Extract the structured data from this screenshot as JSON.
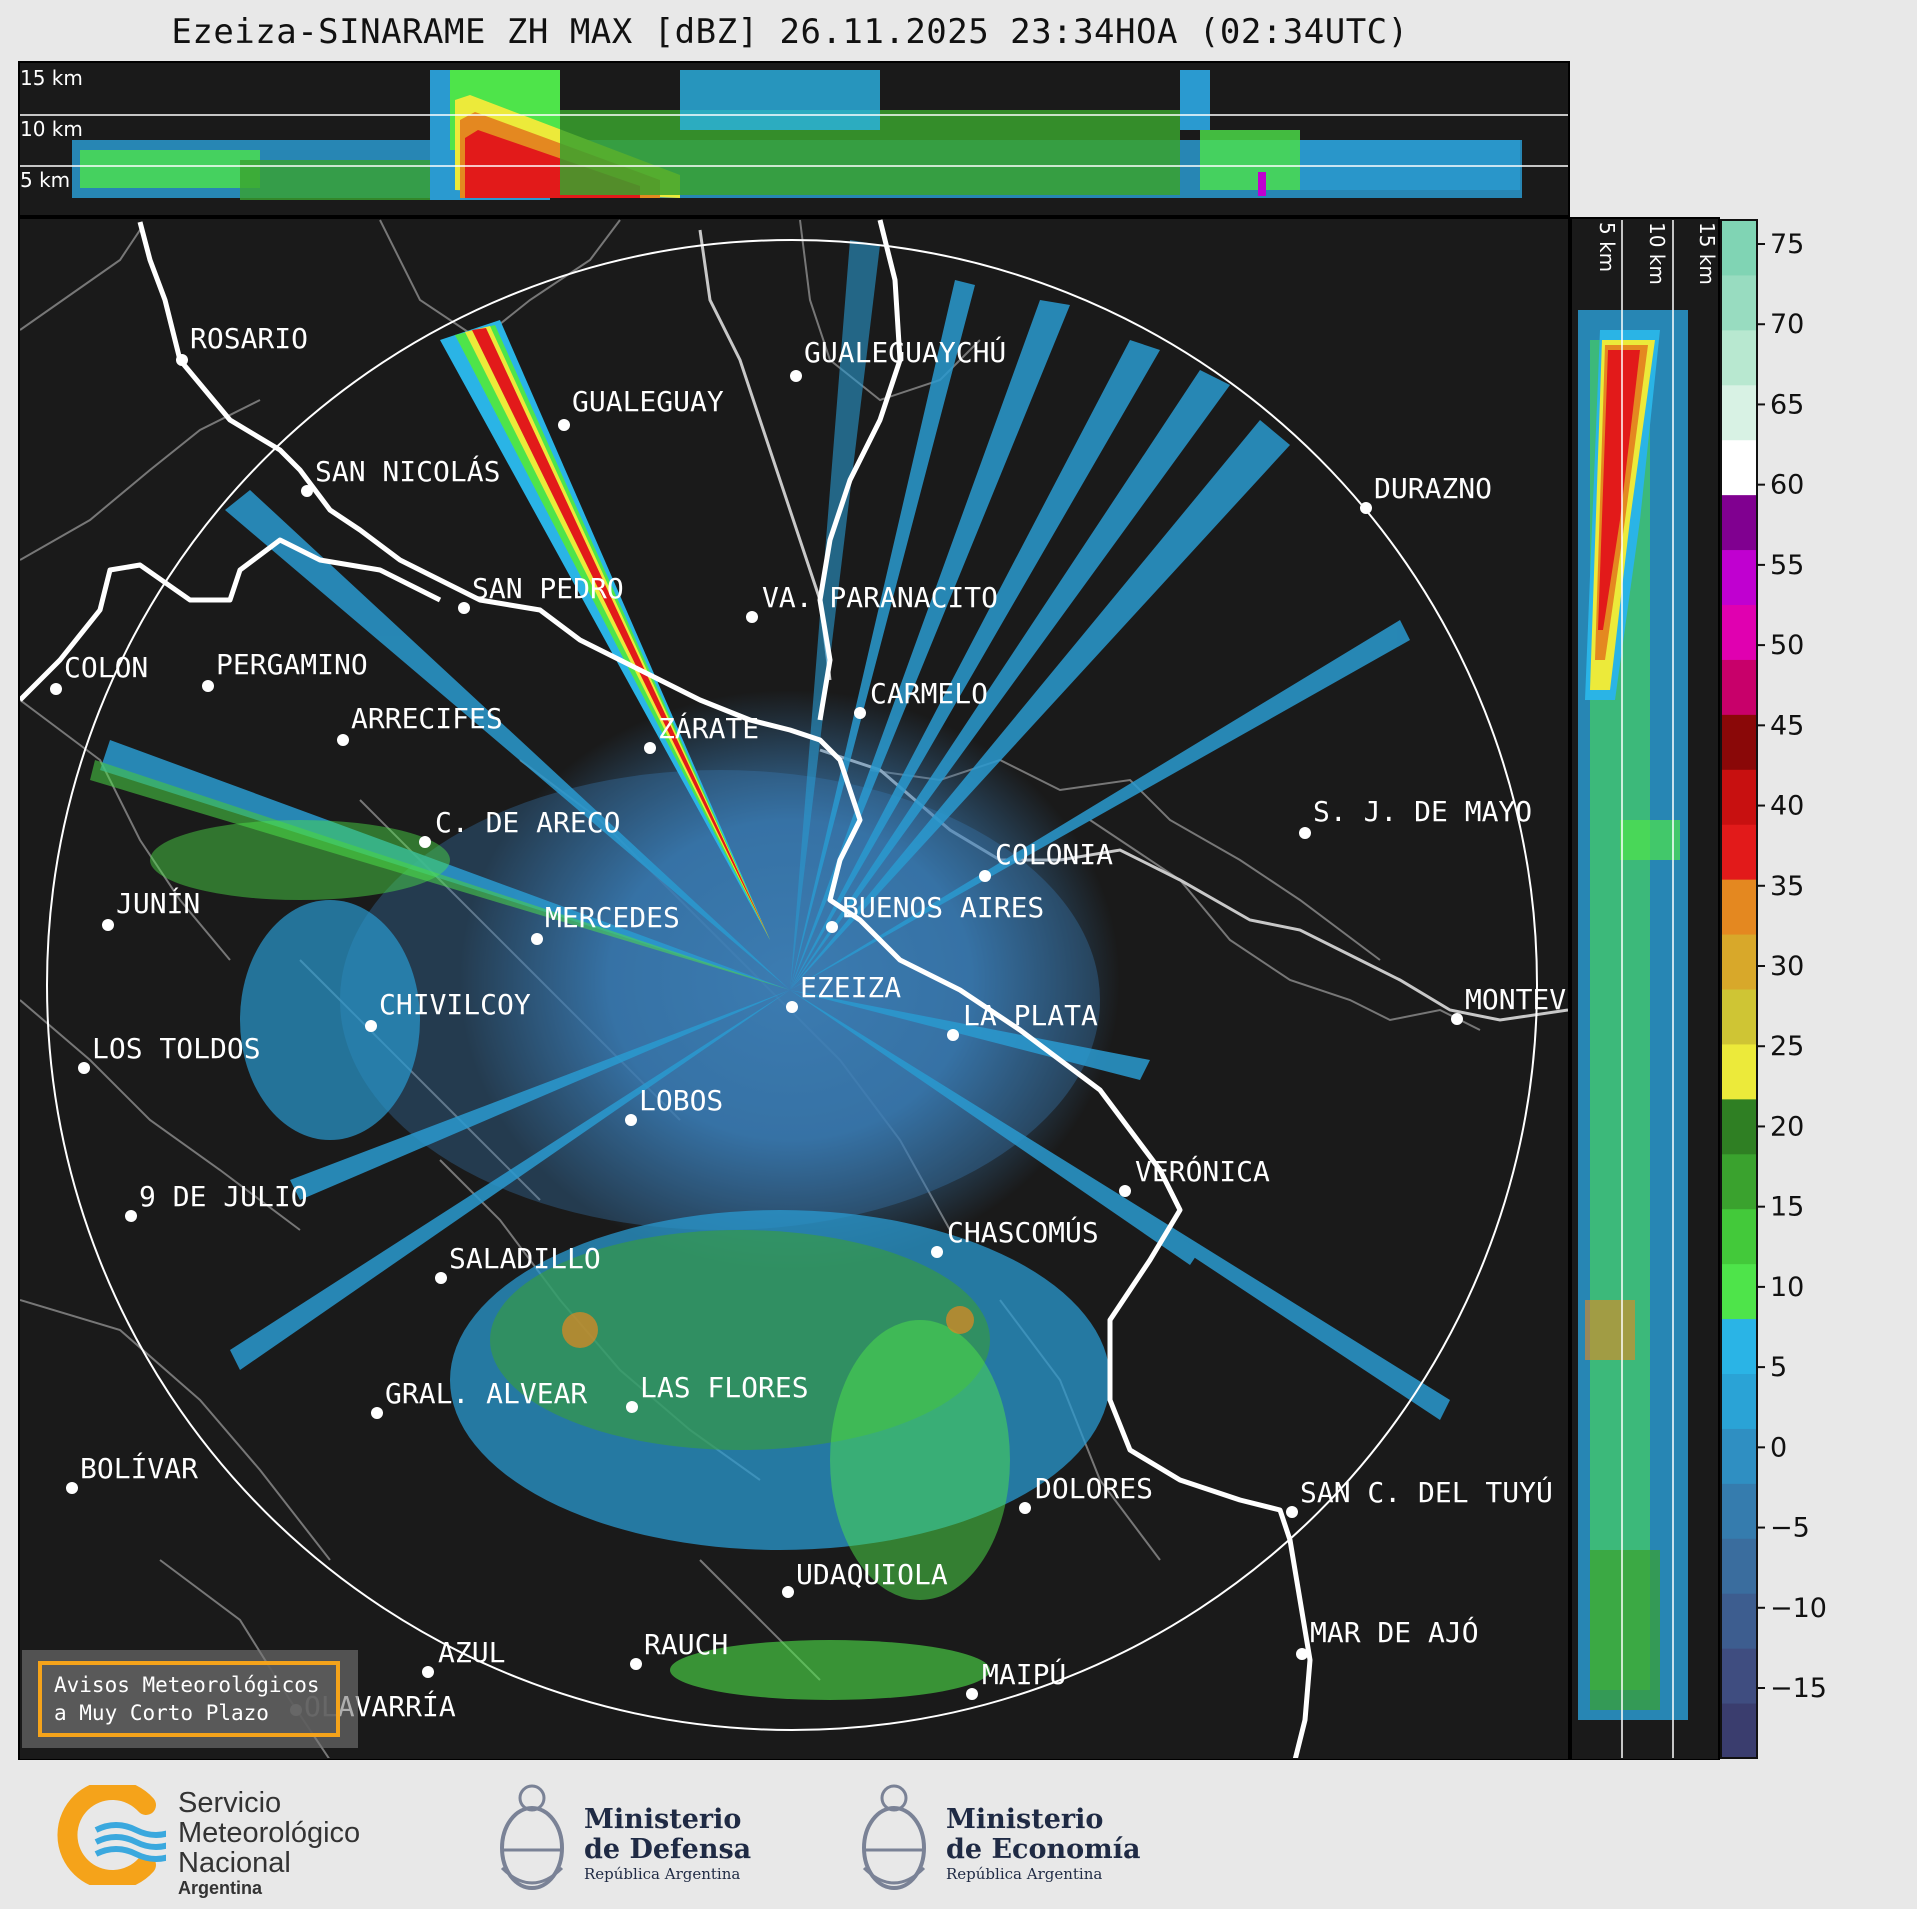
{
  "title": "Ezeiza-SINARAME ZH MAX [dBZ] 26.11.2025 23:34HOA (02:34UTC)",
  "top_panel": {
    "labels": [
      "15 km",
      "10 km",
      "5 km"
    ]
  },
  "side_panel": {
    "labels": [
      "5 km",
      "10 km",
      "15 km"
    ]
  },
  "colorbar": {
    "ticks": [
      "75",
      "70",
      "65",
      "60",
      "55",
      "50",
      "45",
      "40",
      "35",
      "30",
      "25",
      "20",
      "15",
      "10",
      "5",
      "0",
      "−5",
      "−10",
      "−15"
    ],
    "stops": [
      "#3a3d6e",
      "#3f4d80",
      "#3d5d8f",
      "#3a6d9e",
      "#357cae",
      "#2f8fc2",
      "#2aa3d6",
      "#2ab4e6",
      "#4ee44a",
      "#43c93a",
      "#3aa22e",
      "#2f7f23",
      "#ecea3a",
      "#cfc534",
      "#d8a82a",
      "#e48820",
      "#e21a1a",
      "#c81010",
      "#8a0808",
      "#c8006a",
      "#e000b0",
      "#c000d0",
      "#800090",
      "#ffffff",
      "#d8f2e4",
      "#b8e8d0",
      "#98dcc0",
      "#80d4b4"
    ]
  },
  "cities": [
    {
      "name": "ROSARIO"
    },
    {
      "name": "GUALEGUAYCHÚ"
    },
    {
      "name": "GUALEGUAY"
    },
    {
      "name": "SAN NICOLÁS"
    },
    {
      "name": "DURAZNO"
    },
    {
      "name": "SAN PEDRO"
    },
    {
      "name": "VA. PARANACITO"
    },
    {
      "name": "COLON"
    },
    {
      "name": "PERGAMINO"
    },
    {
      "name": "CARMELO"
    },
    {
      "name": "ARRECIFES"
    },
    {
      "name": "ZÁRATE"
    },
    {
      "name": "S. J. DE MAYO"
    },
    {
      "name": "C. DE ARECO"
    },
    {
      "name": "COLONIA"
    },
    {
      "name": "JUNÍN"
    },
    {
      "name": "MERCEDES"
    },
    {
      "name": "BUENOS AIRES"
    },
    {
      "name": "EZEIZA"
    },
    {
      "name": "MONTEV"
    },
    {
      "name": "CHIVILCOY"
    },
    {
      "name": "LA PLATA"
    },
    {
      "name": "LOS TOLDOS"
    },
    {
      "name": "LOBOS"
    },
    {
      "name": "VERÓNICA"
    },
    {
      "name": "9 DE JULIO"
    },
    {
      "name": "CHASCOMÚS"
    },
    {
      "name": "SALADILLO"
    },
    {
      "name": "GRAL. ALVEAR"
    },
    {
      "name": "LAS FLORES"
    },
    {
      "name": "BOLÍVAR"
    },
    {
      "name": "DOLORES"
    },
    {
      "name": "SAN C. DEL TUYÚ"
    },
    {
      "name": "UDAQUIOLA"
    },
    {
      "name": "MAR DE AJÓ"
    },
    {
      "name": "AZUL"
    },
    {
      "name": "RAUCH"
    },
    {
      "name": "OLAVARRÍA"
    },
    {
      "name": "MAIPÚ"
    }
  ],
  "warning": {
    "line1": "Avisos Meteorológicos",
    "line2": "a Muy Corto Plazo"
  },
  "footer": {
    "smn": {
      "line1": "Servicio",
      "line2": "Meteorológico",
      "line3": "Nacional",
      "line4": "Argentina"
    },
    "defensa": {
      "line1": "Ministerio",
      "line2": "de Defensa",
      "sub": "República Argentina"
    },
    "economia": {
      "line1": "Ministerio",
      "line2": "de Economía",
      "sub": "República Argentina"
    }
  }
}
